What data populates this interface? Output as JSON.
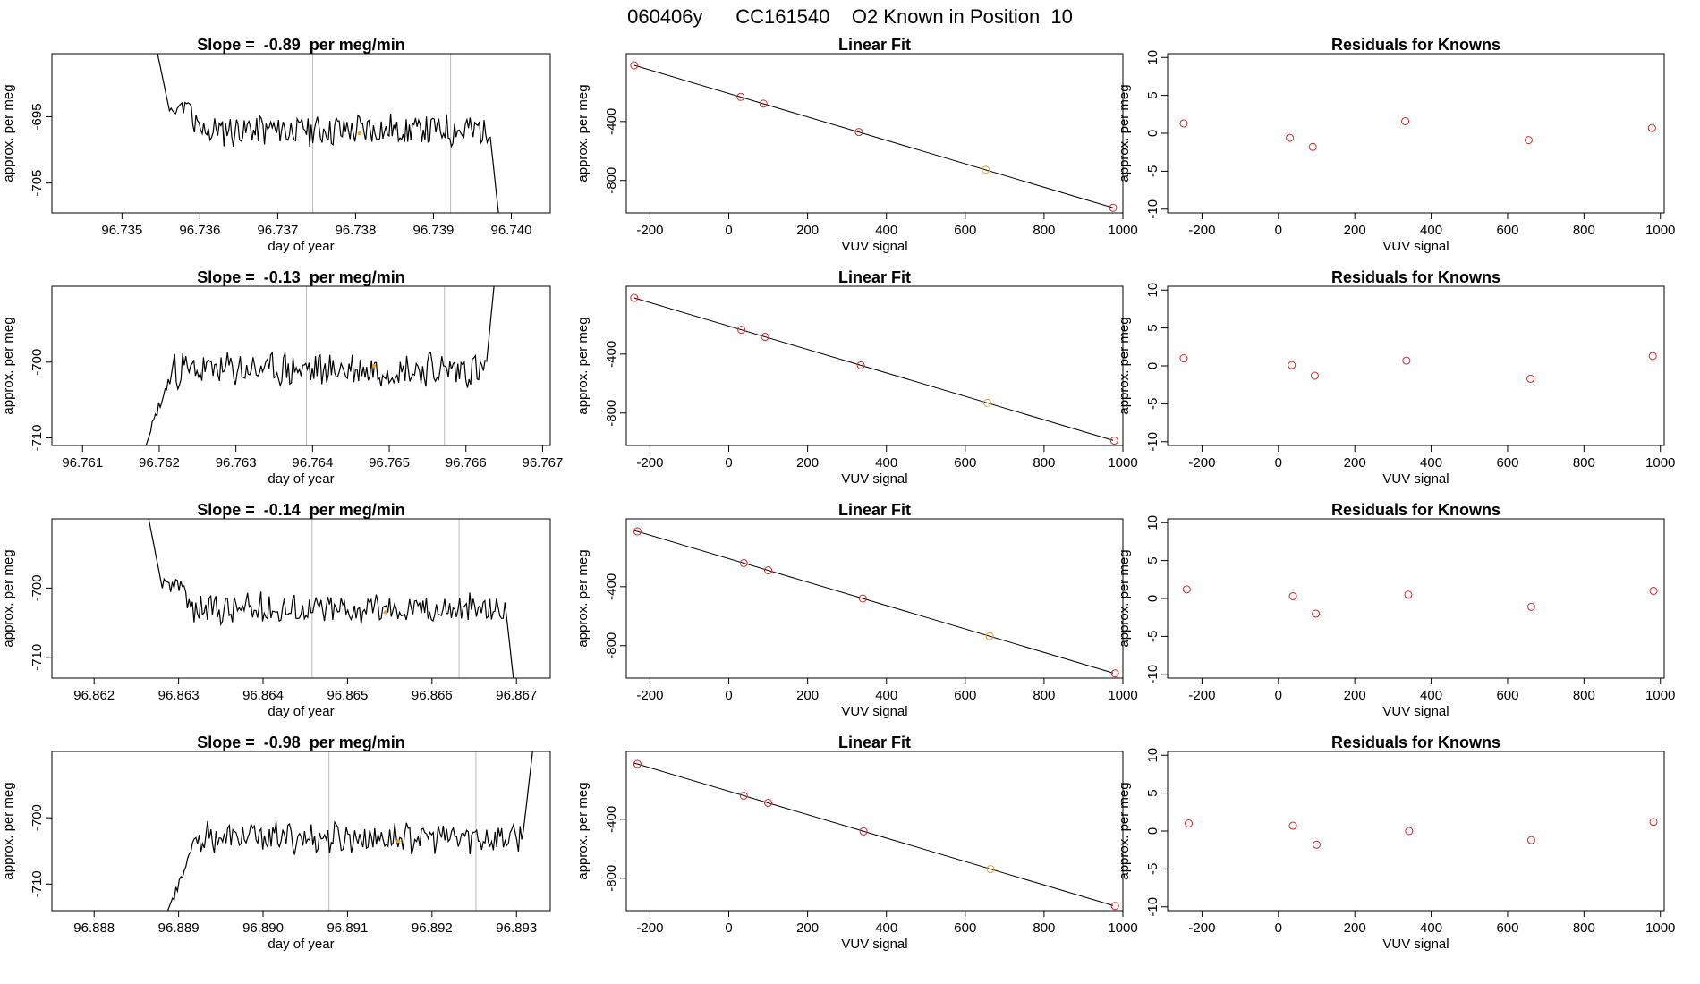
{
  "figure_title": "060406y      CC161540    O2 Known in Position  10",
  "chart_data": [
    {
      "row": 1,
      "kind": "time-series",
      "type": "line",
      "title": "Slope =  -0.89  per meg/min",
      "xlabel": "day of year",
      "ylabel": "approx. per meg",
      "xlim": [
        96.7341,
        96.7405
      ],
      "ylim": [
        -709.5,
        -685.5
      ],
      "xticks": [
        "96.735",
        "96.736",
        "96.737",
        "96.738",
        "96.739",
        "96.740"
      ],
      "yticks": [
        "-695",
        "-705"
      ],
      "start": 96.73535,
      "end": 96.73995,
      "vlines": [
        96.73745,
        96.73922
      ],
      "marker": [
        96.73805,
        -697.5
      ],
      "trend": "down",
      "level": -697,
      "noise": 2.2,
      "seed": 11
    },
    {
      "row": 1,
      "kind": "fit",
      "type": "line+scatter",
      "title": "Linear Fit",
      "xlabel": "VUV signal",
      "ylabel": "approx. per meg",
      "xlim": [
        -260,
        1000
      ],
      "ylim": [
        -1020,
        60
      ],
      "xticks": [
        "-200",
        "0",
        "200",
        "400",
        "600",
        "800",
        "1000"
      ],
      "yticks": [
        "-400",
        "-800"
      ],
      "line": [
        [
          -240,
          -19
        ],
        [
          975,
          -985
        ]
      ],
      "points": [
        [
          -240,
          -19
        ],
        [
          30,
          -233
        ],
        [
          88,
          -279
        ],
        [
          330,
          -472
        ],
        [
          652,
          -728
        ],
        [
          975,
          -985
        ]
      ],
      "highlight_index": 4
    },
    {
      "row": 1,
      "kind": "residuals",
      "type": "scatter",
      "title": "Residuals for Knowns",
      "xlabel": "VUV signal",
      "ylabel": "approx. per meg",
      "xlim": [
        -290,
        1010
      ],
      "ylim": [
        -10.5,
        10.5
      ],
      "xticks": [
        "-200",
        "0",
        "200",
        "400",
        "600",
        "800",
        "1000"
      ],
      "yticks": [
        "-10",
        "-5",
        "0",
        "5",
        "10"
      ],
      "points": [
        [
          -248,
          1.3
        ],
        [
          30,
          -0.6
        ],
        [
          90,
          -1.8
        ],
        [
          332,
          1.6
        ],
        [
          655,
          -0.9
        ],
        [
          978,
          0.7
        ]
      ]
    },
    {
      "row": 2,
      "kind": "time-series",
      "type": "line",
      "title": "Slope =  -0.13  per meg/min",
      "xlabel": "day of year",
      "ylabel": "approx. per meg",
      "xlim": [
        96.7606,
        96.7671
      ],
      "ylim": [
        -711,
        -690
      ],
      "xticks": [
        "96.761",
        "96.762",
        "96.763",
        "96.764",
        "96.765",
        "96.766",
        "96.767"
      ],
      "yticks": [
        "-700",
        "-710"
      ],
      "start": 96.7617,
      "end": 96.7665,
      "vlines": [
        96.76392,
        96.76572
      ],
      "marker": [
        96.7648,
        -700.5
      ],
      "trend": "up",
      "level": -701,
      "noise": 2.0,
      "seed": 23
    },
    {
      "row": 2,
      "kind": "fit",
      "type": "line+scatter",
      "title": "Linear Fit",
      "xlabel": "VUV signal",
      "ylabel": "approx. per meg",
      "xlim": [
        -260,
        1000
      ],
      "ylim": [
        -1020,
        60
      ],
      "xticks": [
        "-200",
        "0",
        "200",
        "400",
        "600",
        "800",
        "1000"
      ],
      "yticks": [
        "-400",
        "-800"
      ],
      "line": [
        [
          -240,
          -19
        ],
        [
          975,
          -985
        ]
      ],
      "points": [
        [
          -240,
          -19
        ],
        [
          32,
          -235
        ],
        [
          92,
          -283
        ],
        [
          335,
          -476
        ],
        [
          656,
          -731
        ],
        [
          978,
          -987
        ]
      ],
      "highlight_index": 4
    },
    {
      "row": 2,
      "kind": "residuals",
      "type": "scatter",
      "title": "Residuals for Knowns",
      "xlabel": "VUV signal",
      "ylabel": "approx. per meg",
      "xlim": [
        -290,
        1010
      ],
      "ylim": [
        -10.5,
        10.5
      ],
      "xticks": [
        "-200",
        "0",
        "200",
        "400",
        "600",
        "800",
        "1000"
      ],
      "yticks": [
        "-10",
        "-5",
        "0",
        "5",
        "10"
      ],
      "points": [
        [
          -248,
          1.0
        ],
        [
          35,
          0.1
        ],
        [
          95,
          -1.3
        ],
        [
          335,
          0.7
        ],
        [
          660,
          -1.7
        ],
        [
          980,
          1.3
        ]
      ]
    },
    {
      "row": 3,
      "kind": "time-series",
      "type": "line",
      "title": "Slope =  -0.14  per meg/min",
      "xlabel": "day of year",
      "ylabel": "approx. per meg",
      "xlim": [
        96.8615,
        96.8674
      ],
      "ylim": [
        -713,
        -690
      ],
      "xticks": [
        "96.862",
        "96.863",
        "96.864",
        "96.865",
        "96.866",
        "96.867"
      ],
      "yticks": [
        "-700",
        "-710"
      ],
      "start": 96.86255,
      "end": 96.8671,
      "vlines": [
        96.86458,
        96.86632
      ],
      "marker": [
        96.86545,
        -703.5
      ],
      "trend": "down",
      "level": -703,
      "noise": 2.0,
      "seed": 37
    },
    {
      "row": 3,
      "kind": "fit",
      "type": "line+scatter",
      "title": "Linear Fit",
      "xlabel": "VUV signal",
      "ylabel": "approx. per meg",
      "xlim": [
        -260,
        1000
      ],
      "ylim": [
        -1020,
        60
      ],
      "xticks": [
        "-200",
        "0",
        "200",
        "400",
        "600",
        "800",
        "1000"
      ],
      "yticks": [
        "-400",
        "-800"
      ],
      "line": [
        [
          -240,
          -19
        ],
        [
          975,
          -985
        ]
      ],
      "points": [
        [
          -232,
          -25
        ],
        [
          38,
          -240
        ],
        [
          100,
          -289
        ],
        [
          340,
          -480
        ],
        [
          662,
          -736
        ],
        [
          980,
          -988
        ]
      ],
      "highlight_index": 4
    },
    {
      "row": 3,
      "kind": "residuals",
      "type": "scatter",
      "title": "Residuals for Knowns",
      "xlabel": "VUV signal",
      "ylabel": "approx. per meg",
      "xlim": [
        -290,
        1010
      ],
      "ylim": [
        -10.5,
        10.5
      ],
      "xticks": [
        "-200",
        "0",
        "200",
        "400",
        "600",
        "800",
        "1000"
      ],
      "yticks": [
        "-10",
        "-5",
        "0",
        "5",
        "10"
      ],
      "points": [
        [
          -240,
          1.2
        ],
        [
          38,
          0.3
        ],
        [
          98,
          -2.0
        ],
        [
          340,
          0.5
        ],
        [
          662,
          -1.1
        ],
        [
          982,
          1.0
        ]
      ]
    },
    {
      "row": 4,
      "kind": "time-series",
      "type": "line",
      "title": "Slope =  -0.98  per meg/min",
      "xlabel": "day of year",
      "ylabel": "approx. per meg",
      "xlim": [
        96.8875,
        96.8934
      ],
      "ylim": [
        -714,
        -690
      ],
      "xticks": [
        "96.888",
        "96.889",
        "96.890",
        "96.891",
        "96.892",
        "96.893"
      ],
      "yticks": [
        "-700",
        "-710"
      ],
      "start": 96.88875,
      "end": 96.8933,
      "vlines": [
        96.89078,
        96.89252
      ],
      "marker": [
        96.8916,
        -703.5
      ],
      "trend": "up",
      "level": -703,
      "noise": 2.0,
      "seed": 53
    },
    {
      "row": 4,
      "kind": "fit",
      "type": "line+scatter",
      "title": "Linear Fit",
      "xlabel": "VUV signal",
      "ylabel": "approx. per meg",
      "xlim": [
        -260,
        1000
      ],
      "ylim": [
        -1020,
        60
      ],
      "xticks": [
        "-200",
        "0",
        "200",
        "400",
        "600",
        "800",
        "1000"
      ],
      "yticks": [
        "-400",
        "-800"
      ],
      "line": [
        [
          -240,
          -19
        ],
        [
          975,
          -985
        ]
      ],
      "points": [
        [
          -232,
          -25
        ],
        [
          38,
          -240
        ],
        [
          100,
          -289
        ],
        [
          342,
          -482
        ],
        [
          664,
          -738
        ],
        [
          980,
          -988
        ]
      ],
      "highlight_index": 4
    },
    {
      "row": 4,
      "kind": "residuals",
      "type": "scatter",
      "title": "Residuals for Knowns",
      "xlabel": "VUV signal",
      "ylabel": "approx. per meg",
      "xlim": [
        -290,
        1010
      ],
      "ylim": [
        -10.5,
        10.5
      ],
      "xticks": [
        "-200",
        "0",
        "200",
        "400",
        "600",
        "800",
        "1000"
      ],
      "yticks": [
        "-10",
        "-5",
        "0",
        "5",
        "10"
      ],
      "points": [
        [
          -235,
          1.0
        ],
        [
          38,
          0.7
        ],
        [
          100,
          -1.8
        ],
        [
          342,
          0.0
        ],
        [
          662,
          -1.2
        ],
        [
          982,
          1.2
        ]
      ]
    }
  ],
  "colors": {
    "line": "#000000",
    "points": "#d62728",
    "highlight": "#f0a020",
    "vline": "#bbbbbb",
    "frame": "#000000"
  }
}
